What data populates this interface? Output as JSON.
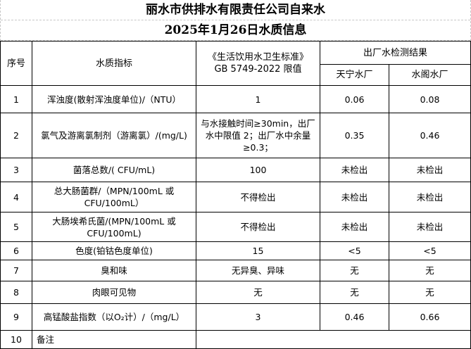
{
  "title": "丽水市供排水有限责任公司自来水",
  "subtitle": "2025年1月26日水质信息",
  "headers": {
    "index": "序号",
    "indicator": "水质指标",
    "standard_line1": "《生活饮用水卫生标准》",
    "standard_line2": "GB 5749-2022 限值",
    "results": "出厂水检测结果",
    "plant1": "天宁水厂",
    "plant2": "水阁水厂"
  },
  "rows": [
    {
      "no": "1",
      "indicator": "浑浊度(散射浑浊度单位)/（NTU）",
      "limit": "1",
      "tianning": "0.06",
      "shuige": "0.08"
    },
    {
      "no": "2",
      "indicator": "氯气及游离氯制剂（游离氯）/(mg/L)",
      "limit": "与水接触时间≥30min，出厂水中限值 2；出厂水中余量≥0.3；",
      "tianning": "0.35",
      "shuige": "0.46"
    },
    {
      "no": "3",
      "indicator": "菌落总数/( CFU/mL)",
      "limit": "100",
      "tianning": "未检出",
      "shuige": "未检出"
    },
    {
      "no": "4",
      "indicator": "总大肠菌群/（MPN/100mL 或 CFU/100mL）",
      "limit": "不得检出",
      "tianning": "未检出",
      "shuige": "未检出"
    },
    {
      "no": "5",
      "indicator": "大肠埃希氏菌/(MPN/100mL 或 CFU/100mL)",
      "limit": "不得检出",
      "tianning": "未检出",
      "shuige": "未检出"
    },
    {
      "no": "6",
      "indicator": "色度(铂钴色度单位)",
      "limit": "15",
      "tianning": "<5",
      "shuige": "<5"
    },
    {
      "no": "7",
      "indicator": "臭和味",
      "limit": "无异臭、异味",
      "tianning": "无",
      "shuige": "无"
    },
    {
      "no": "8",
      "indicator": "肉眼可见物",
      "limit": "无",
      "tianning": "无",
      "shuige": "无"
    },
    {
      "no": "9",
      "indicator": "高锰酸盐指数（以O₂计）/（mg/L）",
      "limit": "3",
      "tianning": "0.46",
      "shuige": "0.66"
    }
  ],
  "remarks": {
    "no": "10",
    "label": "备注",
    "value": ""
  }
}
